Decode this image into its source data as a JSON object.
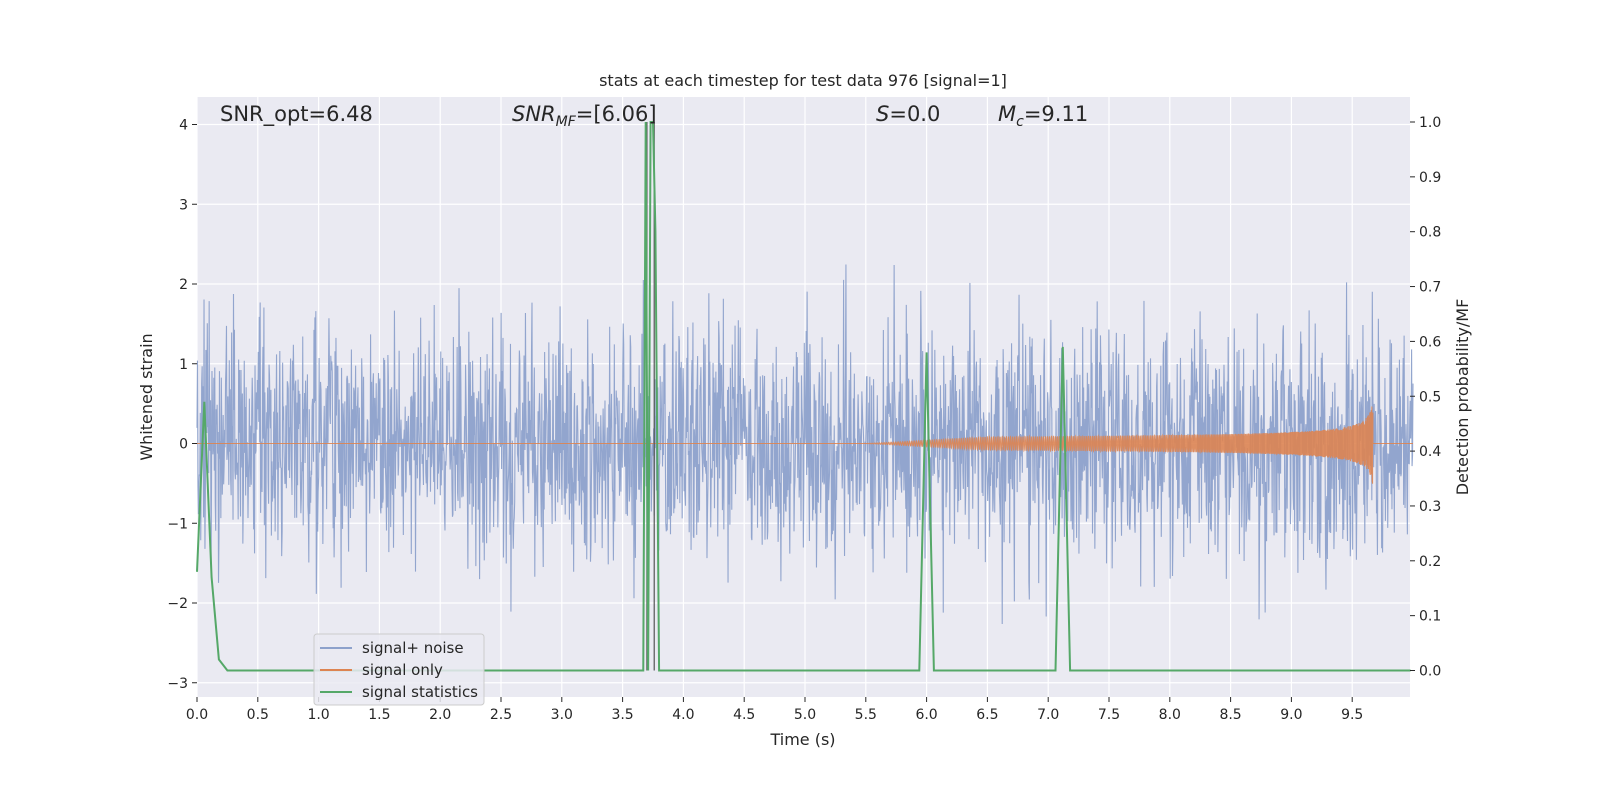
{
  "chart_data": {
    "type": "line",
    "title": "stats at each timestep for test data 976 [signal=1]",
    "xlabel": "Time (s)",
    "ylabel": "Whitened strain",
    "ylabel_right": "Detection probability/MF",
    "xlim": [
      0.0,
      10.0
    ],
    "ylim": [
      -3.2,
      4.35
    ],
    "ylim_right": [
      -0.05,
      1.045
    ],
    "grid": true,
    "legend_position": "lower-left",
    "x_ticks": [
      "0.0",
      "0.5",
      "1.0",
      "1.5",
      "2.0",
      "2.5",
      "3.0",
      "3.5",
      "4.0",
      "4.5",
      "5.0",
      "5.5",
      "6.0",
      "6.5",
      "7.0",
      "7.5",
      "8.0",
      "8.5",
      "9.0",
      "9.5"
    ],
    "y_ticks": [
      "4",
      "3",
      "2",
      "1",
      "0",
      "−1",
      "−2",
      "−3"
    ],
    "y_ticks_right": [
      "1.0",
      "0.9",
      "0.8",
      "0.7",
      "0.6",
      "0.5",
      "0.4",
      "0.3",
      "0.2",
      "0.1",
      "0.0"
    ],
    "annotations": {
      "snr_opt": "SNR_opt=6.48",
      "snr_mf_main": "SNR",
      "snr_mf_sub": "MF",
      "snr_mf_value": "=[6.06]",
      "s_var": "S",
      "s_value": "=0.0",
      "mc_var": "M",
      "mc_sub": "c",
      "mc_value": "=9.11"
    },
    "colors": {
      "noise": "#8da1cb",
      "signal": "#dd8452",
      "stats": "#55a868",
      "background": "#eaeaf2",
      "grid": "#ffffff"
    },
    "series": [
      {
        "name": "signal+ noise",
        "description_values": "whitened strain noise fluctuating roughly between -2.9 and 4.0 over 0-10 s"
      },
      {
        "name": "signal only",
        "chirp": {
          "t_start": 5.5,
          "t_end": 9.67,
          "amp_end": 0.55
        }
      },
      {
        "name": "signal statistics",
        "x": [
          0.0,
          0.06,
          0.12,
          0.18,
          0.25,
          3.67,
          3.69,
          3.71,
          3.73,
          3.75,
          3.77,
          3.8,
          5.94,
          6.0,
          6.06,
          7.06,
          7.12,
          7.18,
          9.98
        ],
        "y": [
          0.18,
          0.49,
          0.17,
          0.02,
          0.0,
          0.0,
          1.0,
          0.0,
          1.0,
          1.0,
          0.8,
          0.0,
          0.0,
          0.58,
          0.0,
          0.0,
          0.59,
          0.0,
          0.0
        ]
      }
    ],
    "vertical_markers": [
      3.7,
      3.76
    ]
  }
}
